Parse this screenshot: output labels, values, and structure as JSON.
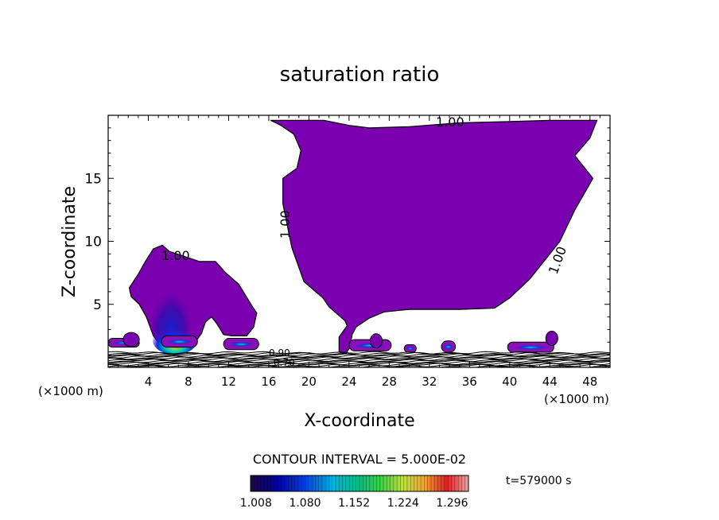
{
  "chart_data": {
    "type": "contour",
    "title": "saturation ratio",
    "xlabel": "X-coordinate",
    "ylabel": "Z-coordinate",
    "x_unit_left": "(×1000 m)",
    "x_unit_right": "(×1000 m)",
    "xlim": [
      0,
      50
    ],
    "ylim": [
      0,
      20
    ],
    "x_ticks": [
      4,
      8,
      12,
      16,
      20,
      24,
      28,
      32,
      36,
      40,
      44,
      48
    ],
    "y_ticks": [
      5,
      10,
      15
    ],
    "contour_interval_text": "CONTOUR INTERVAL = 5.000E-02",
    "contour_label": "1.00",
    "low_labels": [
      "0.90",
      "0.70"
    ],
    "time_text": "t=579000 s",
    "colorbar": {
      "min": 1.0,
      "max": 1.32,
      "tick_values": [
        1.008,
        1.08,
        1.152,
        1.224,
        1.296
      ],
      "tick_labels": [
        "1.008",
        "1.080",
        "1.152",
        "1.224",
        "1.296"
      ],
      "colors": [
        "#1a0a3a",
        "#0000a0",
        "#0040e0",
        "#00b4e0",
        "#00c080",
        "#40d040",
        "#c0e040",
        "#f0a030",
        "#e02020",
        "#f4a0a0"
      ]
    },
    "regions": {
      "upper_cloud": [
        [
          16.2,
          19.6
        ],
        [
          19,
          19.6
        ],
        [
          21.5,
          19.6
        ],
        [
          24,
          19.2
        ],
        [
          26,
          19
        ],
        [
          30,
          19.1
        ],
        [
          35,
          19.4
        ],
        [
          40,
          19.5
        ],
        [
          44,
          19.6
        ],
        [
          48,
          19.6
        ],
        [
          48.7,
          19.6
        ],
        [
          48,
          18.2
        ],
        [
          46.5,
          16.8
        ],
        [
          48.3,
          15
        ],
        [
          46.5,
          12.5
        ],
        [
          45,
          10
        ],
        [
          42,
          7
        ],
        [
          40,
          5.5
        ],
        [
          38.5,
          4.7
        ],
        [
          35,
          4.6
        ],
        [
          30,
          4.6
        ],
        [
          27.5,
          4.4
        ],
        [
          26,
          3.9
        ],
        [
          24.7,
          3.2
        ],
        [
          24.3,
          2.6
        ],
        [
          24.1,
          1.6
        ],
        [
          23.7,
          1.1
        ],
        [
          23,
          1.2
        ],
        [
          23,
          2.4
        ],
        [
          23.8,
          3.3
        ],
        [
          23.6,
          3.7
        ],
        [
          22,
          4.8
        ],
        [
          21.4,
          5.5
        ],
        [
          19.5,
          6.8
        ],
        [
          18.3,
          9.5
        ],
        [
          17.4,
          13
        ],
        [
          17.4,
          15
        ],
        [
          18.8,
          15.8
        ],
        [
          19.2,
          17.2
        ],
        [
          18.5,
          18.5
        ],
        [
          17.2,
          19.2
        ],
        [
          16.2,
          19.6
        ]
      ],
      "lower_cloud": [
        [
          2.1,
          6.3
        ],
        [
          3,
          7.4
        ],
        [
          3.7,
          8.4
        ],
        [
          4.5,
          9.4
        ],
        [
          5.4,
          9.7
        ],
        [
          6.1,
          9.2
        ],
        [
          7.6,
          8.8
        ],
        [
          9.1,
          8.4
        ],
        [
          10.7,
          8.4
        ],
        [
          11.7,
          7.5
        ],
        [
          13,
          6.6
        ],
        [
          14.3,
          4.9
        ],
        [
          14.8,
          4.3
        ],
        [
          14.5,
          3.2
        ],
        [
          13.8,
          2.5
        ],
        [
          13.3,
          2.5
        ],
        [
          12.3,
          2.5
        ],
        [
          11.5,
          2.6
        ],
        [
          10.8,
          3.5
        ],
        [
          10.3,
          4
        ],
        [
          9.7,
          3.6
        ],
        [
          9.3,
          2.7
        ],
        [
          8.6,
          1.9
        ],
        [
          8.2,
          1.5
        ],
        [
          7.3,
          1.4
        ],
        [
          6.3,
          1.6
        ],
        [
          5.3,
          1.6
        ],
        [
          4.5,
          2.5
        ],
        [
          3.8,
          4
        ],
        [
          3.1,
          5
        ],
        [
          2.3,
          5.6
        ],
        [
          2.1,
          6.3
        ]
      ]
    }
  }
}
